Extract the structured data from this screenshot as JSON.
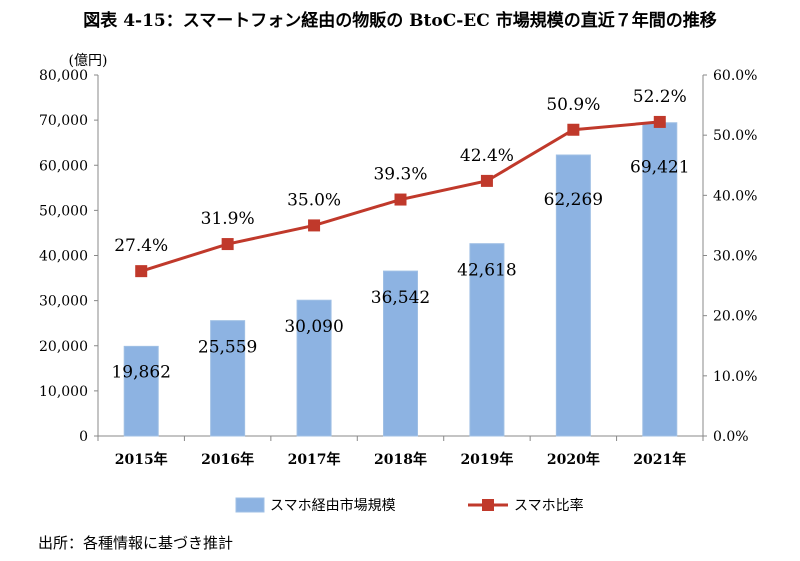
{
  "title": "図表 4-15：スマートフォン経由の物販の BtoC-EC 市場規模の直近７年間の推移",
  "source": "出所：各種情報に基づき推計",
  "chart_data": {
    "type": "bar+line",
    "categories": [
      "2015年",
      "2016年",
      "2017年",
      "2018年",
      "2019年",
      "2020年",
      "2021年"
    ],
    "series": [
      {
        "name": "スマホ経由市場規模",
        "type": "bar",
        "axis": "left",
        "values": [
          19862,
          25559,
          30090,
          36542,
          42618,
          62269,
          69421
        ],
        "labels": [
          "19,862",
          "25,559",
          "30,090",
          "36,542",
          "42,618",
          "62,269",
          "69,421"
        ],
        "color": "#8db3e2"
      },
      {
        "name": "スマホ比率",
        "type": "line",
        "axis": "right",
        "values": [
          27.4,
          31.9,
          35.0,
          39.3,
          42.4,
          50.9,
          52.2
        ],
        "labels": [
          "27.4%",
          "31.9%",
          "35.0%",
          "39.3%",
          "42.4%",
          "50.9%",
          "52.2%"
        ],
        "color": "#c0392b"
      }
    ],
    "ylabel": "(億円)",
    "ylim": [
      0,
      80000
    ],
    "yticks": [
      "0",
      "10,000",
      "20,000",
      "30,000",
      "40,000",
      "50,000",
      "60,000",
      "70,000",
      "80,000"
    ],
    "y2lim": [
      0,
      60
    ],
    "y2ticks": [
      "0.0%",
      "10.0%",
      "20.0%",
      "30.0%",
      "40.0%",
      "50.0%",
      "60.0%"
    ],
    "grid": false,
    "legend": "bottom"
  }
}
